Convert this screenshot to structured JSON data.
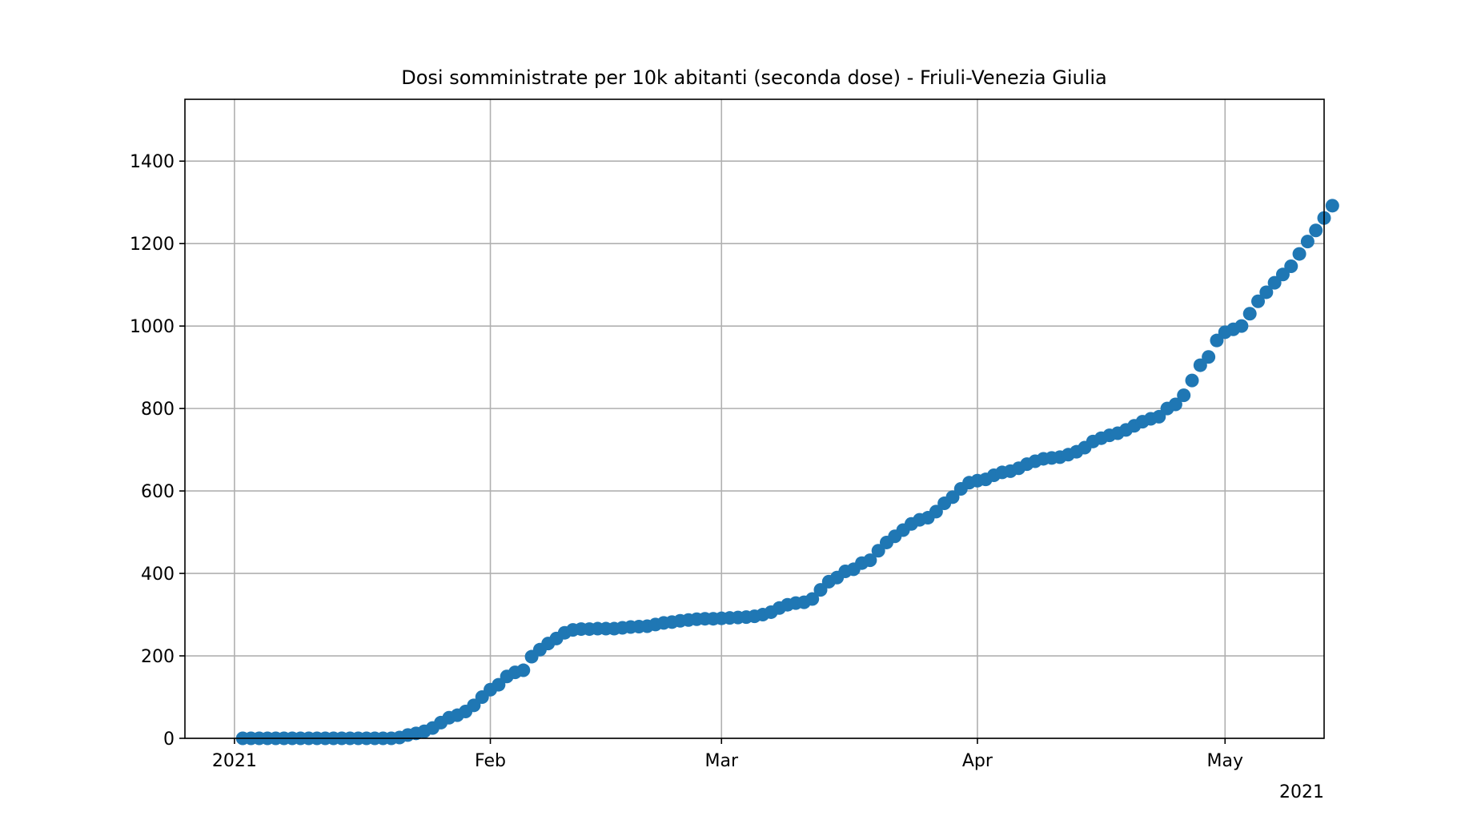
{
  "chart_data": {
    "type": "scatter",
    "title": "Dosi somministrate per 10k abitanti (seconda dose) - Friuli-Venezia Giulia",
    "xlabel": "",
    "ylabel": "",
    "x_range": [
      "2020-12-26",
      "2021-05-13"
    ],
    "ylim": [
      0,
      1550
    ],
    "grid": true,
    "x_ticks": [
      {
        "date": "2021-01-01",
        "label": "2021"
      },
      {
        "date": "2021-02-01",
        "label": "Feb"
      },
      {
        "date": "2021-03-01",
        "label": "Mar"
      },
      {
        "date": "2021-04-01",
        "label": "Apr"
      },
      {
        "date": "2021-05-01",
        "label": "May"
      }
    ],
    "x_offset_label": "2021",
    "y_ticks": [
      0,
      200,
      400,
      600,
      800,
      1000,
      1200,
      1400
    ],
    "series": [
      {
        "color": "#1f77b4",
        "start_date": "2021-01-02",
        "values": [
          0,
          0,
          0,
          0,
          0,
          0,
          0,
          0,
          0,
          0,
          0,
          0,
          0,
          0,
          0,
          0,
          0,
          0,
          0,
          2,
          8,
          12,
          17,
          25,
          38,
          50,
          56,
          65,
          80,
          100,
          118,
          130,
          150,
          160,
          165,
          198,
          215,
          230,
          242,
          256,
          263,
          265,
          265,
          266,
          266,
          266,
          268,
          270,
          271,
          272,
          276,
          280,
          282,
          285,
          287,
          289,
          290,
          290,
          291,
          292,
          293,
          294,
          296,
          300,
          306,
          316,
          324,
          328,
          330,
          338,
          360,
          380,
          390,
          405,
          410,
          425,
          432,
          455,
          475,
          490,
          505,
          520,
          530,
          535,
          550,
          570,
          585,
          605,
          620,
          625,
          628,
          638,
          645,
          648,
          655,
          665,
          672,
          678,
          680,
          682,
          688,
          695,
          705,
          720,
          728,
          735,
          740,
          748,
          758,
          768,
          775,
          780,
          800,
          810,
          832,
          868,
          905,
          925,
          965,
          985,
          992,
          1000,
          1030,
          1060,
          1082,
          1105,
          1125,
          1145,
          1175,
          1205,
          1232,
          1262,
          1292
        ]
      }
    ]
  }
}
